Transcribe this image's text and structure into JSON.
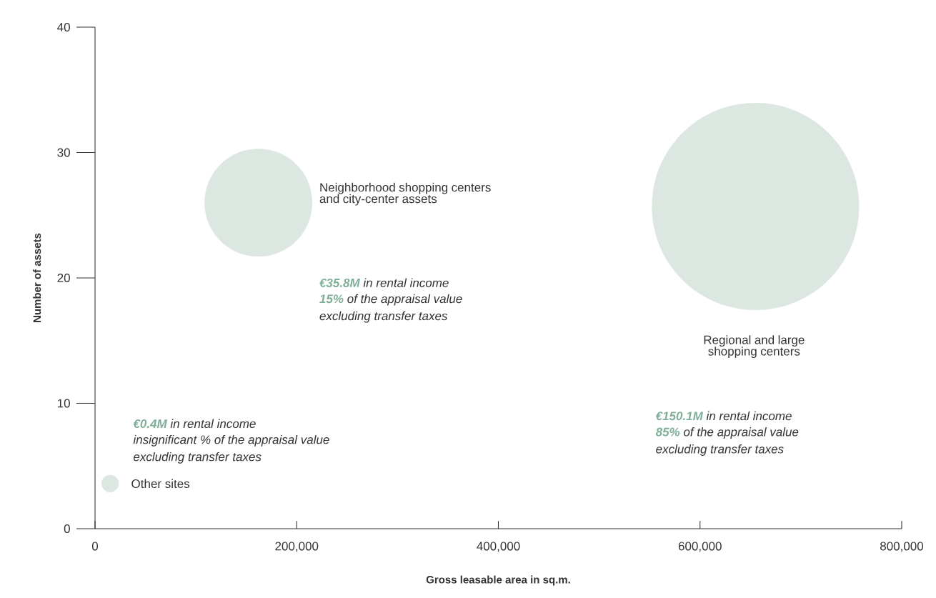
{
  "chart_data": {
    "type": "bubble",
    "xlabel": "Gross leasable area in sq.m.",
    "ylabel": "Number of assets",
    "xlim": [
      0,
      800000
    ],
    "ylim": [
      0,
      40
    ],
    "xticks": [
      0,
      {
        "value": 200000,
        "label": "200,000"
      },
      {
        "value": 400000,
        "label": "400,000"
      },
      {
        "value": 600000,
        "label": "600,000"
      },
      {
        "value": 800000,
        "label": "800,000"
      }
    ],
    "yticks": [
      0,
      10,
      20,
      30,
      40
    ],
    "grid": false,
    "series": [
      {
        "color": "#dde7e1",
        "x": [
          15000,
          162000,
          655000
        ],
        "values": [
          3.6,
          26,
          25.7
        ],
        "sizes": [
          0.007,
          0.27,
          1
        ]
      }
    ],
    "annotations": [
      "Other sites",
      "Neighborhood shopping centers and city-center assets",
      "Regional and large shopping centers",
      "**€0.4M** in rental income",
      "insignificant % of the appraisal value",
      "excluding transfer taxes",
      "**€35.8M**  in rental income",
      "**15%** of the appraisal value",
      "excluding transfer taxes",
      "**€150.1M** in rental income",
      "**85%** of the appraisal value",
      "excluding transfer taxes"
    ]
  }
}
